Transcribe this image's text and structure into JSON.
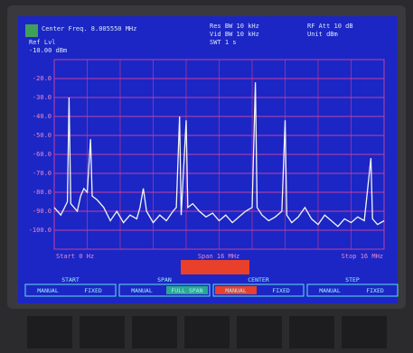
{
  "header": {
    "center_freq": "Center Freq. 8.005550 MHz",
    "ref_lvl": "Ref Lvl",
    "ref_value": "-10.00 dBm",
    "res_bw": "Res BW 10 kHz",
    "vid_bw": "Vid BW 10 kHz",
    "swt": "SWT 1 s",
    "rf_att": "RF Att 10 dB",
    "unit": "Unit dBm"
  },
  "footer": {
    "start": "Start 0 Hz",
    "span": "Span 16 MHz",
    "stop": "Stop 16 MHz"
  },
  "softkeys": [
    {
      "title": "START",
      "left": "MANUAL",
      "right": "FIXED"
    },
    {
      "title": "SPAN",
      "left": "MANUAL",
      "right": "FULL SPAN"
    },
    {
      "title": "CENTER",
      "left": "MANUAL",
      "right": "FIXED"
    },
    {
      "title": "STEP",
      "left": "MANUAL",
      "right": "FIXED"
    }
  ],
  "chart_data": {
    "type": "line",
    "x": [
      0,
      2,
      4,
      4.5,
      5,
      7,
      8,
      9,
      10,
      11,
      11.5,
      13,
      15,
      17,
      19,
      21,
      23,
      25,
      26,
      27,
      28,
      30,
      32,
      34,
      36,
      37,
      38,
      38.5,
      40,
      40.5,
      42,
      44,
      46,
      48,
      50,
      52,
      54,
      56,
      58,
      60,
      61,
      61.5,
      63,
      65,
      67,
      69,
      70,
      70.5,
      72,
      74,
      76,
      78,
      80,
      82,
      84,
      86,
      88,
      90,
      92,
      94,
      96,
      96.5,
      98,
      100
    ],
    "xlim": [
      0,
      100
    ],
    "series": [
      {
        "color": "#f2f6f2",
        "values": [
          -88,
          -92,
          -85,
          -30,
          -86,
          -90,
          -82,
          -78,
          -80,
          -52,
          -82,
          -84,
          -88,
          -95,
          -90,
          -96,
          -92,
          -94,
          -88,
          -78,
          -90,
          -96,
          -92,
          -95,
          -90,
          -88,
          -40,
          -92,
          -42,
          -88,
          -86,
          -90,
          -93,
          -91,
          -95,
          -92,
          -96,
          -93,
          -90,
          -88,
          -22,
          -88,
          -92,
          -95,
          -93,
          -90,
          -42,
          -92,
          -96,
          -93,
          -88,
          -94,
          -97,
          -92,
          -95,
          -98,
          -94,
          -96,
          -93,
          -95,
          -62,
          -94,
          -97,
          -95
        ]
      }
    ],
    "ylim": [
      -110,
      -10
    ],
    "yticks": [
      {
        "value": -20,
        "label": "-20.0"
      },
      {
        "value": -30,
        "label": "-30.0"
      },
      {
        "value": -40,
        "label": "-40.0"
      },
      {
        "value": -50,
        "label": "-50.0"
      },
      {
        "value": -60,
        "label": "-60.0"
      },
      {
        "value": -70,
        "label": "-70.0"
      },
      {
        "value": -80,
        "label": "-80.0"
      },
      {
        "value": -90,
        "label": "-90.0"
      },
      {
        "value": -100,
        "label": "-100.0"
      }
    ],
    "grid": true
  }
}
